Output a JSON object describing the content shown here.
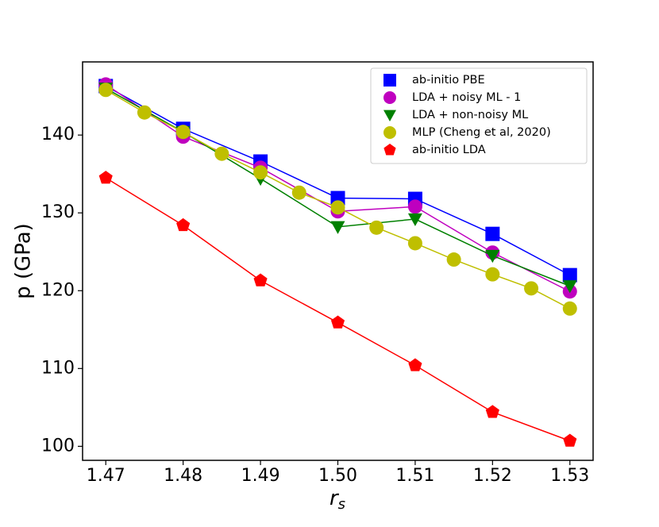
{
  "chart_data": {
    "type": "line",
    "xlabel": {
      "main": "r",
      "sub": "s"
    },
    "ylabel": "p (GPa)",
    "xlim": [
      1.467,
      1.533
    ],
    "ylim": [
      98.2,
      149.4
    ],
    "xticks": [
      1.47,
      1.48,
      1.49,
      {
        "value": 1.5,
        "label": "1.50"
      },
      1.51,
      1.52,
      1.53
    ],
    "yticks": [
      100,
      110,
      120,
      130,
      140
    ],
    "legend": "upper right",
    "series": [
      {
        "name": "ab-initio PBE",
        "color": "#0000ff",
        "marker": "square",
        "x": [
          1.47,
          1.48,
          1.49,
          1.5,
          1.51,
          1.52,
          1.53
        ],
        "values": [
          146.3,
          140.8,
          136.6,
          131.9,
          131.8,
          127.3,
          122.0
        ]
      },
      {
        "name": "LDA + noisy ML - 1",
        "color": "#bf00bf",
        "marker": "circle",
        "x": [
          1.47,
          1.48,
          1.49,
          1.5,
          1.51,
          1.52,
          1.53
        ],
        "values": [
          146.5,
          139.8,
          135.8,
          130.2,
          130.8,
          124.9,
          119.9
        ]
      },
      {
        "name": "LDA + non-noisy ML",
        "color": "#008000",
        "marker": "triangle-down",
        "x": [
          1.47,
          1.48,
          1.49,
          1.5,
          1.51,
          1.52,
          1.53
        ],
        "values": [
          146.0,
          140.4,
          134.4,
          128.2,
          129.2,
          124.5,
          120.6
        ]
      },
      {
        "name": "MLP (Cheng et al, 2020)",
        "color": "#bfbf00",
        "marker": "circle",
        "x": [
          1.47,
          1.475,
          1.48,
          1.485,
          1.49,
          1.495,
          1.5,
          1.505,
          1.51,
          1.515,
          1.52,
          1.525,
          1.53
        ],
        "values": [
          145.8,
          142.9,
          140.4,
          137.6,
          135.2,
          132.6,
          130.7,
          128.1,
          126.1,
          124.0,
          122.1,
          120.3,
          117.7
        ]
      },
      {
        "name": "ab-initio LDA",
        "color": "#ff0000",
        "marker": "pentagon",
        "x": [
          1.47,
          1.48,
          1.49,
          1.5,
          1.51,
          1.52,
          1.53
        ],
        "values": [
          134.5,
          128.4,
          121.3,
          115.9,
          110.4,
          104.4,
          100.7
        ]
      }
    ]
  }
}
